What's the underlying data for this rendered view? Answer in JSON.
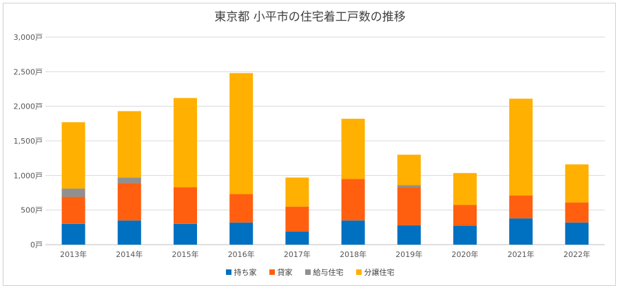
{
  "chart_data": {
    "type": "bar",
    "stacked": true,
    "title": "東京都 小平市の住宅着工戸数の推移",
    "categories": [
      "2013年",
      "2014年",
      "2015年",
      "2016年",
      "2017年",
      "2018年",
      "2019年",
      "2020年",
      "2021年",
      "2022年"
    ],
    "y_ticks": [
      "0戸",
      "500戸",
      "1,000戸",
      "1,500戸",
      "2,000戸",
      "2,500戸",
      "3,000戸"
    ],
    "ylim": [
      0,
      3000
    ],
    "grid": true,
    "legend_position": "bottom",
    "series": [
      {
        "name": "持ち家",
        "color": "#0070C0",
        "values": [
          300,
          350,
          300,
          320,
          190,
          350,
          280,
          275,
          380,
          320
        ]
      },
      {
        "name": "貸家",
        "color": "#FF5F0F",
        "values": [
          390,
          540,
          530,
          410,
          360,
          600,
          550,
          300,
          330,
          290
        ]
      },
      {
        "name": "給与住宅",
        "color": "#909090",
        "values": [
          120,
          80,
          0,
          0,
          0,
          0,
          30,
          0,
          0,
          0
        ]
      },
      {
        "name": "分譲住宅",
        "color": "#FFB000",
        "values": [
          960,
          960,
          1290,
          1750,
          420,
          870,
          440,
          460,
          1400,
          550
        ]
      }
    ]
  }
}
